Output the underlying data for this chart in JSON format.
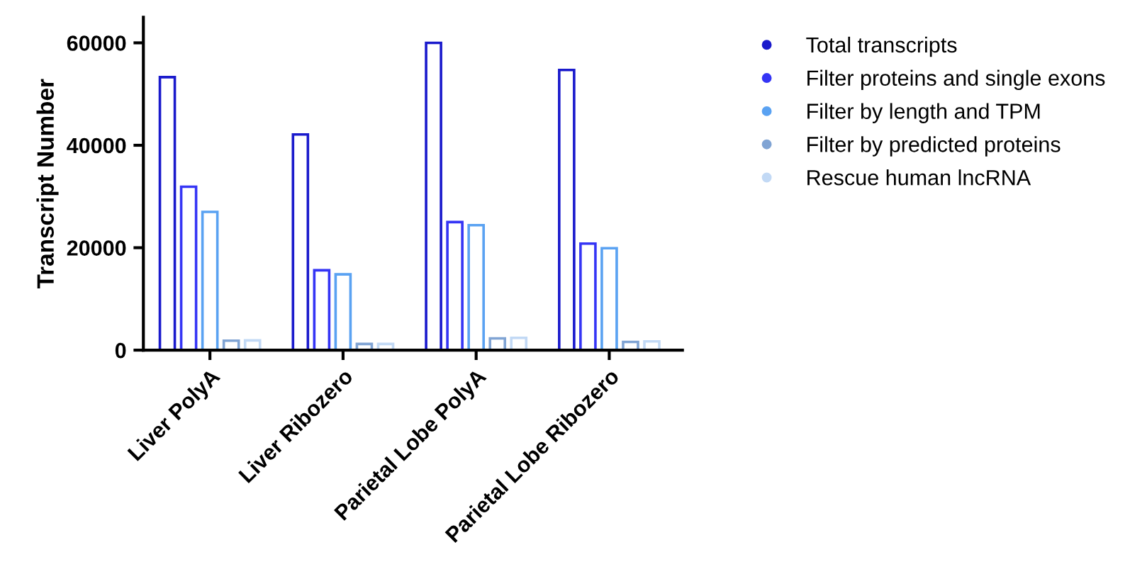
{
  "chart_data": {
    "type": "bar",
    "ylabel": "Transcript Number",
    "categories": [
      "Liver PolyA",
      "Liver Ribozero",
      "Parietal Lobe PolyA",
      "Parietal Lobe Ribozero"
    ],
    "series": [
      {
        "name": "Total transcripts",
        "color": "#1a1acc",
        "values": [
          53300,
          42100,
          60000,
          54700
        ]
      },
      {
        "name": "Filter proteins and single exons",
        "color": "#3535f5",
        "values": [
          31900,
          15600,
          25000,
          20800
        ]
      },
      {
        "name": "Filter by length and TPM",
        "color": "#5aa2f2",
        "values": [
          27000,
          14800,
          24400,
          19900
        ]
      },
      {
        "name": "Filter by predicted proteins",
        "color": "#80a4d4",
        "values": [
          1850,
          1200,
          2300,
          1600
        ]
      },
      {
        "name": "Rescue human lncRNA",
        "color": "#c2d9f5",
        "values": [
          1900,
          1200,
          2400,
          1700
        ]
      }
    ],
    "ylim": [
      0,
      65000
    ],
    "yticks": [
      0,
      20000,
      40000,
      60000
    ],
    "grid": false,
    "legend": "top right",
    "marker": "circle"
  }
}
